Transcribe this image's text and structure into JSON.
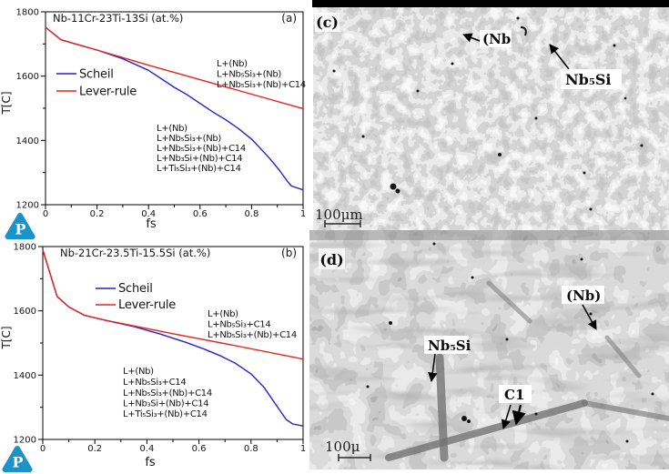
{
  "chart_data": [
    {
      "type": "line",
      "panel_label": "(a)",
      "title": "Nb-11Cr-23Ti-13Si (at.%)",
      "xlabel": "fs",
      "ylabel": "T[C]",
      "xlim": [
        0,
        1
      ],
      "ylim": [
        1200,
        1800
      ],
      "x_ticks": [
        "0",
        "0.2",
        "0.4",
        "0.6",
        "0.8",
        "1"
      ],
      "y_ticks": [
        "1800",
        "1600",
        "1400",
        "1200"
      ],
      "grid": false,
      "legend_position": "left-middle",
      "series": [
        {
          "name": "Scheil",
          "color": "#2222cc",
          "x": [
            0,
            0.06,
            0.13,
            0.2,
            0.3,
            0.4,
            0.5,
            0.55,
            0.6,
            0.65,
            0.7,
            0.75,
            0.8,
            0.85,
            0.88,
            0.91,
            0.94,
            0.955,
            1
          ],
          "y": [
            1752,
            1713,
            1697,
            1681,
            1654,
            1618,
            1565,
            1542,
            1515,
            1488,
            1464,
            1436,
            1404,
            1362,
            1335,
            1305,
            1272,
            1258,
            1246
          ]
        },
        {
          "name": "Lever-rule",
          "color": "#e8231b",
          "x": [
            0,
            0.06,
            0.2,
            0.4,
            0.6,
            0.8,
            1
          ],
          "y": [
            1752,
            1713,
            1681,
            1634,
            1589,
            1544,
            1499
          ]
        }
      ],
      "annotations": [
        {
          "color": "#f42718",
          "lines": [
            "L+(Nb)",
            "L+Nb₅Si₃+(Nb)",
            "L+Nb₅Si₃+(Nb)+C14"
          ]
        },
        {
          "color": "#2d2de0",
          "lines": [
            "L+(Nb)",
            "L+Nb₅Si₃+(Nb)",
            "L+Nb₅Si₃+(Nb)+C14",
            "L+Nb₃Si+(Nb)+C14",
            "L+Ti₅Si₃+(Nb)+C14"
          ]
        }
      ]
    },
    {
      "type": "line",
      "panel_label": "(b)",
      "title": "Nb-21Cr-23.5Ti-15.5Si (at.%)",
      "xlabel": "fs",
      "ylabel": "T[C]",
      "xlim": [
        0,
        1
      ],
      "ylim": [
        1200,
        1800
      ],
      "x_ticks": [
        "0",
        "0.2",
        "0.4",
        "0.6",
        "0.8",
        "1"
      ],
      "y_ticks": [
        "1800",
        "1600",
        "1400",
        "1200"
      ],
      "grid": false,
      "legend_position": "upper-left-of-center",
      "series": [
        {
          "name": "Scheil",
          "color": "#2222cc",
          "x": [
            0,
            0.055,
            0.1,
            0.16,
            0.245,
            0.35,
            0.45,
            0.55,
            0.62,
            0.68,
            0.74,
            0.8,
            0.85,
            0.9,
            0.935,
            0.96,
            1
          ],
          "y": [
            1790,
            1645,
            1612,
            1586,
            1570,
            1551,
            1528,
            1502,
            1481,
            1461,
            1437,
            1404,
            1362,
            1303,
            1262,
            1248,
            1242
          ]
        },
        {
          "name": "Lever-rule",
          "color": "#e8231b",
          "x": [
            0,
            0.055,
            0.1,
            0.16,
            0.245,
            0.5,
            0.75,
            1
          ],
          "y": [
            1790,
            1645,
            1612,
            1586,
            1570,
            1529,
            1490,
            1450
          ]
        }
      ],
      "annotations": [
        {
          "color": "#f42718",
          "lines": [
            "L+(Nb)",
            "L+Nb₅Si₃+C14",
            "L+Nb₅Si₃+(Nb)+C14"
          ]
        },
        {
          "color": "#2d2de0",
          "lines": [
            "L+(Nb)",
            "L+Nb₅Si₃+C14",
            "L+Nb₅Si₃+(Nb)+C14",
            "L+Nb₃Si+(Nb)+C14",
            "L+Ti₅Si₃+(Nb)+C14"
          ]
        }
      ]
    }
  ],
  "micrographs": [
    {
      "panel_label": "(c)",
      "scale_bar": "100μm",
      "labels": [
        {
          "text": "(Nb"
        },
        {
          "text": "Nb₅Si"
        }
      ]
    },
    {
      "panel_label": "(d)",
      "scale_bar": "100μ",
      "labels": [
        {
          "text": "(Nb)"
        },
        {
          "text": "Nb₅Si"
        },
        {
          "text": "C1"
        }
      ]
    }
  ],
  "logo": {
    "letter": "P",
    "color": "#1a93c8"
  }
}
